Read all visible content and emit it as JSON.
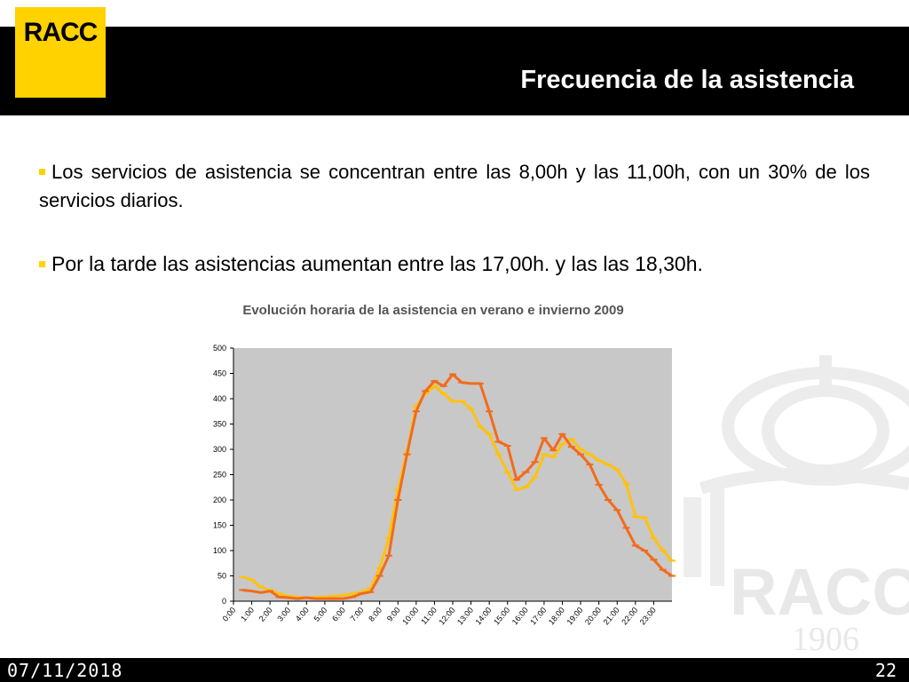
{
  "logo_text": "RACC",
  "slide_title": "Frecuencia de la asistencia",
  "bullets": [
    "Los servicios de asistencia se concentran entre las 8,00h y las 11,00h, con un 30% de los servicios diarios.",
    "Por la tarde las asistencias aumentan entre las 17,00h. y las las 18,30h."
  ],
  "watermark": {
    "text": "RACC",
    "year": "1906"
  },
  "footer": {
    "date": "07/11/2018",
    "page": "22"
  },
  "colors": {
    "accent": "#ffd200",
    "series_dark": "#f26b1d",
    "series_light": "#ffc20e",
    "plot_bg": "#c8c8c8"
  },
  "chart_data": {
    "type": "line",
    "title": "Evolución horaria de la asistencia en verano e invierno 2009",
    "xlabel": "",
    "ylabel": "",
    "ylim": [
      0,
      500
    ],
    "yticks": [
      "0",
      "50",
      "100",
      "150",
      "200",
      "250",
      "300",
      "350",
      "400",
      "450",
      "500"
    ],
    "x_tick_labels": [
      "0:00",
      "1:00",
      "2:00",
      "3:00",
      "4:00",
      "5:00",
      "6:00",
      "7:00",
      "8:00",
      "9:00",
      "10:00",
      "11:00",
      "12:00",
      "13:00",
      "14:00",
      "15:00",
      "16:00",
      "17:00",
      "18:00",
      "19:00",
      "20:00",
      "21:00",
      "22:00",
      "23:00"
    ],
    "grid": false,
    "legend": "none",
    "series": [
      {
        "color": "#f26b1d",
        "x": [
          0,
          0.5,
          1,
          1.5,
          2,
          2.5,
          3,
          3.5,
          4,
          4.5,
          5,
          5.5,
          6,
          6.5,
          7,
          7.5,
          8,
          8.5,
          9,
          9.5,
          10,
          10.5,
          11,
          11.5,
          12,
          12.5,
          13,
          13.5,
          14,
          14.5,
          15,
          15.5,
          16,
          16.5,
          17,
          17.5,
          18,
          18.5,
          19,
          19.5,
          20,
          20.5,
          21,
          21.5,
          22,
          22.5,
          23,
          23.5
        ],
        "values": [
          22,
          20,
          17,
          20,
          8,
          7,
          5,
          7,
          5,
          5,
          5,
          5,
          8,
          15,
          18,
          50,
          90,
          200,
          290,
          375,
          415,
          435,
          425,
          448,
          432,
          430,
          430,
          375,
          315,
          307,
          240,
          255,
          275,
          322,
          298,
          330,
          305,
          290,
          270,
          230,
          200,
          180,
          145,
          110,
          100,
          82,
          62,
          50
        ]
      },
      {
        "color": "#ffc20e",
        "x": [
          0,
          0.5,
          1,
          1.5,
          2,
          2.5,
          3,
          3.5,
          4,
          4.5,
          5,
          5.5,
          6,
          6.5,
          7,
          7.5,
          8,
          8.5,
          9,
          9.5,
          10,
          10.5,
          11,
          11.5,
          12,
          12.5,
          13,
          13.5,
          14,
          14.5,
          15,
          15.5,
          16,
          16.5,
          17,
          17.5,
          18,
          18.5,
          19,
          19.5,
          20,
          20.5,
          21,
          21.5,
          22,
          22.5,
          23,
          23.5
        ],
        "values": [
          48,
          42,
          28,
          22,
          15,
          10,
          8,
          7,
          8,
          8,
          10,
          12,
          15,
          18,
          25,
          65,
          125,
          220,
          295,
          385,
          410,
          425,
          410,
          395,
          395,
          380,
          345,
          330,
          290,
          255,
          220,
          225,
          245,
          290,
          285,
          310,
          320,
          300,
          290,
          278,
          270,
          260,
          232,
          167,
          165,
          125,
          100,
          80
        ]
      }
    ]
  }
}
